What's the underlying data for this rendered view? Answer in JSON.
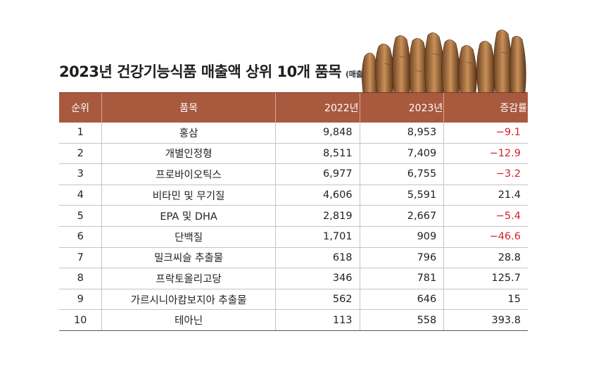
{
  "title": "2023년 건강기능식품 매출액 상위 10개 품목",
  "subtitle": "(매출액, 단위: 억 원, %)",
  "columns": [
    "순위",
    "품목",
    "2022년",
    "2023년",
    "증감률"
  ],
  "rows": [
    {
      "rank": "1",
      "item": "홍삼",
      "y2022": "9,848",
      "y2023": "8,953",
      "change": "−9.1",
      "negative": true
    },
    {
      "rank": "2",
      "item": "개별인정형",
      "y2022": "8,511",
      "y2023": "7,409",
      "change": "−12.9",
      "negative": true
    },
    {
      "rank": "3",
      "item": "프로바이오틱스",
      "y2022": "6,977",
      "y2023": "6,755",
      "change": "−3.2",
      "negative": true
    },
    {
      "rank": "4",
      "item": "비타민 및 무기질",
      "y2022": "4,606",
      "y2023": "5,591",
      "change": "21.4",
      "negative": false
    },
    {
      "rank": "5",
      "item": "EPA 및 DHA",
      "y2022": "2,819",
      "y2023": "2,667",
      "change": "−5.4",
      "negative": true
    },
    {
      "rank": "6",
      "item": "단백질",
      "y2022": "1,701",
      "y2023": "909",
      "change": "−46.6",
      "negative": true
    },
    {
      "rank": "7",
      "item": "밀크씨슬 추출물",
      "y2022": "618",
      "y2023": "796",
      "change": "28.8",
      "negative": false
    },
    {
      "rank": "8",
      "item": "프락토올리고당",
      "y2022": "346",
      "y2023": "781",
      "change": "125.7",
      "negative": false
    },
    {
      "rank": "9",
      "item": "가르시니아캄보지아 추출물",
      "y2022": "562",
      "y2023": "646",
      "change": "15",
      "negative": false
    },
    {
      "rank": "10",
      "item": "테아닌",
      "y2022": "113",
      "y2023": "558",
      "change": "393.8",
      "negative": false
    }
  ],
  "colors": {
    "header_bg": "#a8593e",
    "negative": "#d41f2b"
  },
  "illustration": "ginseng-roots-image"
}
